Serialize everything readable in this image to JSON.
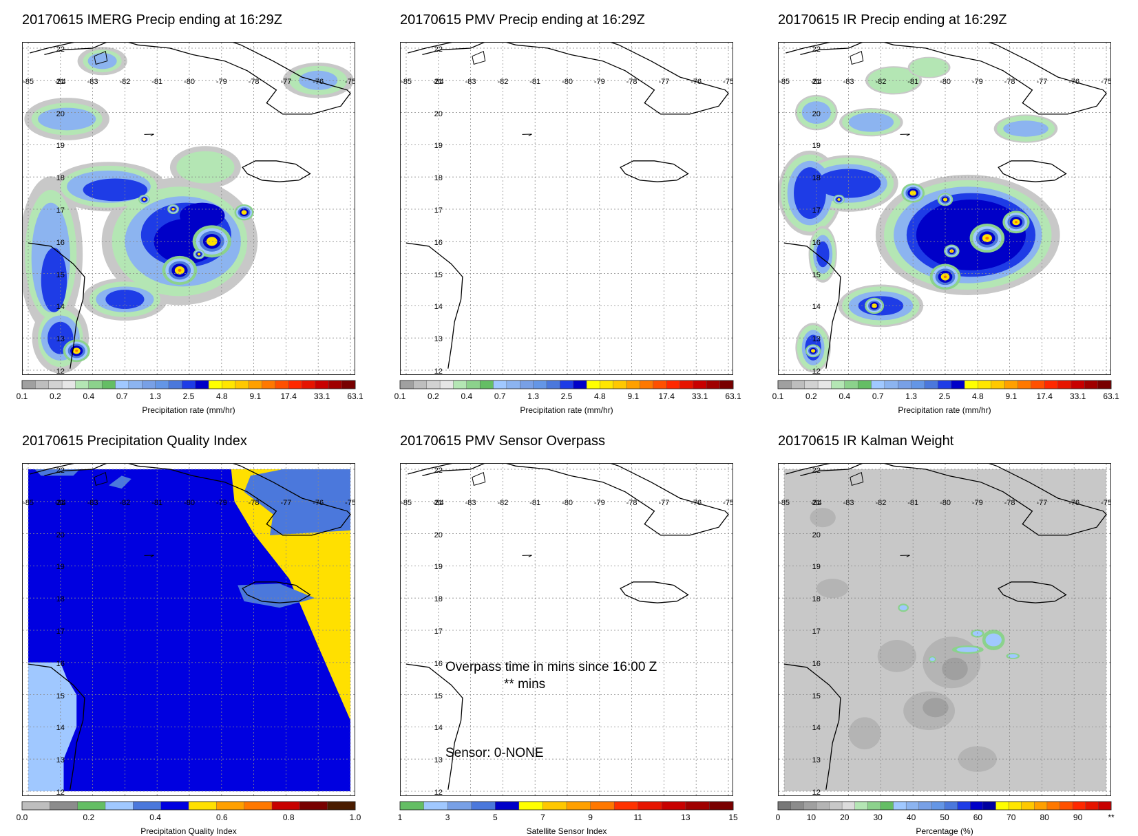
{
  "panels": [
    {
      "title": "20170615 IMERG Precip ending at 16:29Z",
      "kind": "precip-imerg",
      "colorbar": {
        "ticks": [
          "0.1",
          "0.2",
          "0.4",
          "0.7",
          "1.3",
          "2.5",
          "4.8",
          "9.1",
          "17.4",
          "33.1",
          "63.1"
        ],
        "label": "Precipitation rate (mm/hr)"
      }
    },
    {
      "title": "20170615 PMV Precip ending at 16:29Z",
      "kind": "empty",
      "colorbar": {
        "ticks": [
          "0.1",
          "0.2",
          "0.4",
          "0.7",
          "1.3",
          "2.5",
          "4.8",
          "9.1",
          "17.4",
          "33.1",
          "63.1"
        ],
        "label": "Precipitation rate (mm/hr)"
      }
    },
    {
      "title": "20170615 IR Precip ending at 16:29Z",
      "kind": "precip-ir",
      "colorbar": {
        "ticks": [
          "0.1",
          "0.2",
          "0.4",
          "0.7",
          "1.3",
          "2.5",
          "4.8",
          "9.1",
          "17.4",
          "33.1",
          "63.1"
        ],
        "label": "Precipitation rate (mm/hr)"
      }
    },
    {
      "title": "20170615 Precipitation Quality Index",
      "kind": "quality",
      "colorbar": {
        "ticks": [
          "0.0",
          "0.2",
          "0.4",
          "0.6",
          "0.8",
          "1.0"
        ],
        "label": "Precipitation Quality Index"
      }
    },
    {
      "title": "20170615 PMV Sensor Overpass",
      "kind": "overpass",
      "overlay": {
        "line1": "Overpass time in mins since 16:00 Z",
        "line2": "** mins",
        "sensor": "Sensor:   0-NONE"
      },
      "colorbar": {
        "ticks": [
          "1",
          "3",
          "5",
          "7",
          "9",
          "11",
          "13",
          "15"
        ],
        "label": "Satellite Sensor Index"
      }
    },
    {
      "title": "20170615 IR Kalman Weight",
      "kind": "kalman",
      "colorbar": {
        "ticks": [
          "0",
          "10",
          "20",
          "30",
          "40",
          "50",
          "60",
          "70",
          "80",
          "90",
          "**"
        ],
        "label": "Percentage (%)"
      }
    }
  ],
  "map": {
    "lon_labels": [
      "-85",
      "-84",
      "-83",
      "-82",
      "-81",
      "-80",
      "-79",
      "-78",
      "-77",
      "-76",
      "-75"
    ],
    "lat_labels": [
      "22",
      "21",
      "20",
      "19",
      "18",
      "17",
      "16",
      "15",
      "14",
      "13",
      "12"
    ],
    "lon_range": [
      -85,
      -75
    ],
    "lat_range": [
      12,
      22
    ]
  },
  "colors": {
    "precip": [
      "#a0a0a0",
      "#bebebe",
      "#d2d2d2",
      "#e6e6e6",
      "#b4e6b4",
      "#8cd28c",
      "#64be64",
      "#a0c8ff",
      "#8cb4f0",
      "#78a0e6",
      "#6496e6",
      "#4b78dc",
      "#1e3ce6",
      "#0000c8",
      "#ffff00",
      "#ffe600",
      "#ffc800",
      "#ffa000",
      "#ff7800",
      "#ff5000",
      "#ff2800",
      "#e61400",
      "#c80000",
      "#a00000",
      "#780000"
    ],
    "quality": [
      "#bebebe",
      "#8c8c8c",
      "#64be64",
      "#a0c8ff",
      "#4b78dc",
      "#0000e0",
      "#ffe000",
      "#ffa000",
      "#ff7800",
      "#c80000",
      "#780000",
      "#4a1c00"
    ],
    "overpass": [
      "#64be64",
      "#a0c8ff",
      "#78a0e6",
      "#4b78dc",
      "#0000c8",
      "#ffff00",
      "#ffc800",
      "#ffa000",
      "#ff7800",
      "#ff3200",
      "#e61400",
      "#c80000",
      "#a00000",
      "#7a0000"
    ],
    "kalman": [
      "#787878",
      "#8c8c8c",
      "#a0a0a0",
      "#b4b4b4",
      "#c8c8c8",
      "#dcdcdc",
      "#b4e6b4",
      "#8cd28c",
      "#64be64",
      "#a0c8ff",
      "#8cb4f0",
      "#78a0e6",
      "#6496e6",
      "#4b78dc",
      "#1e3ce6",
      "#0000c8",
      "#0000a0",
      "#ffff00",
      "#ffe600",
      "#ffc800",
      "#ffa000",
      "#ff7800",
      "#ff5000",
      "#ff2800",
      "#e61400",
      "#c80000"
    ]
  }
}
